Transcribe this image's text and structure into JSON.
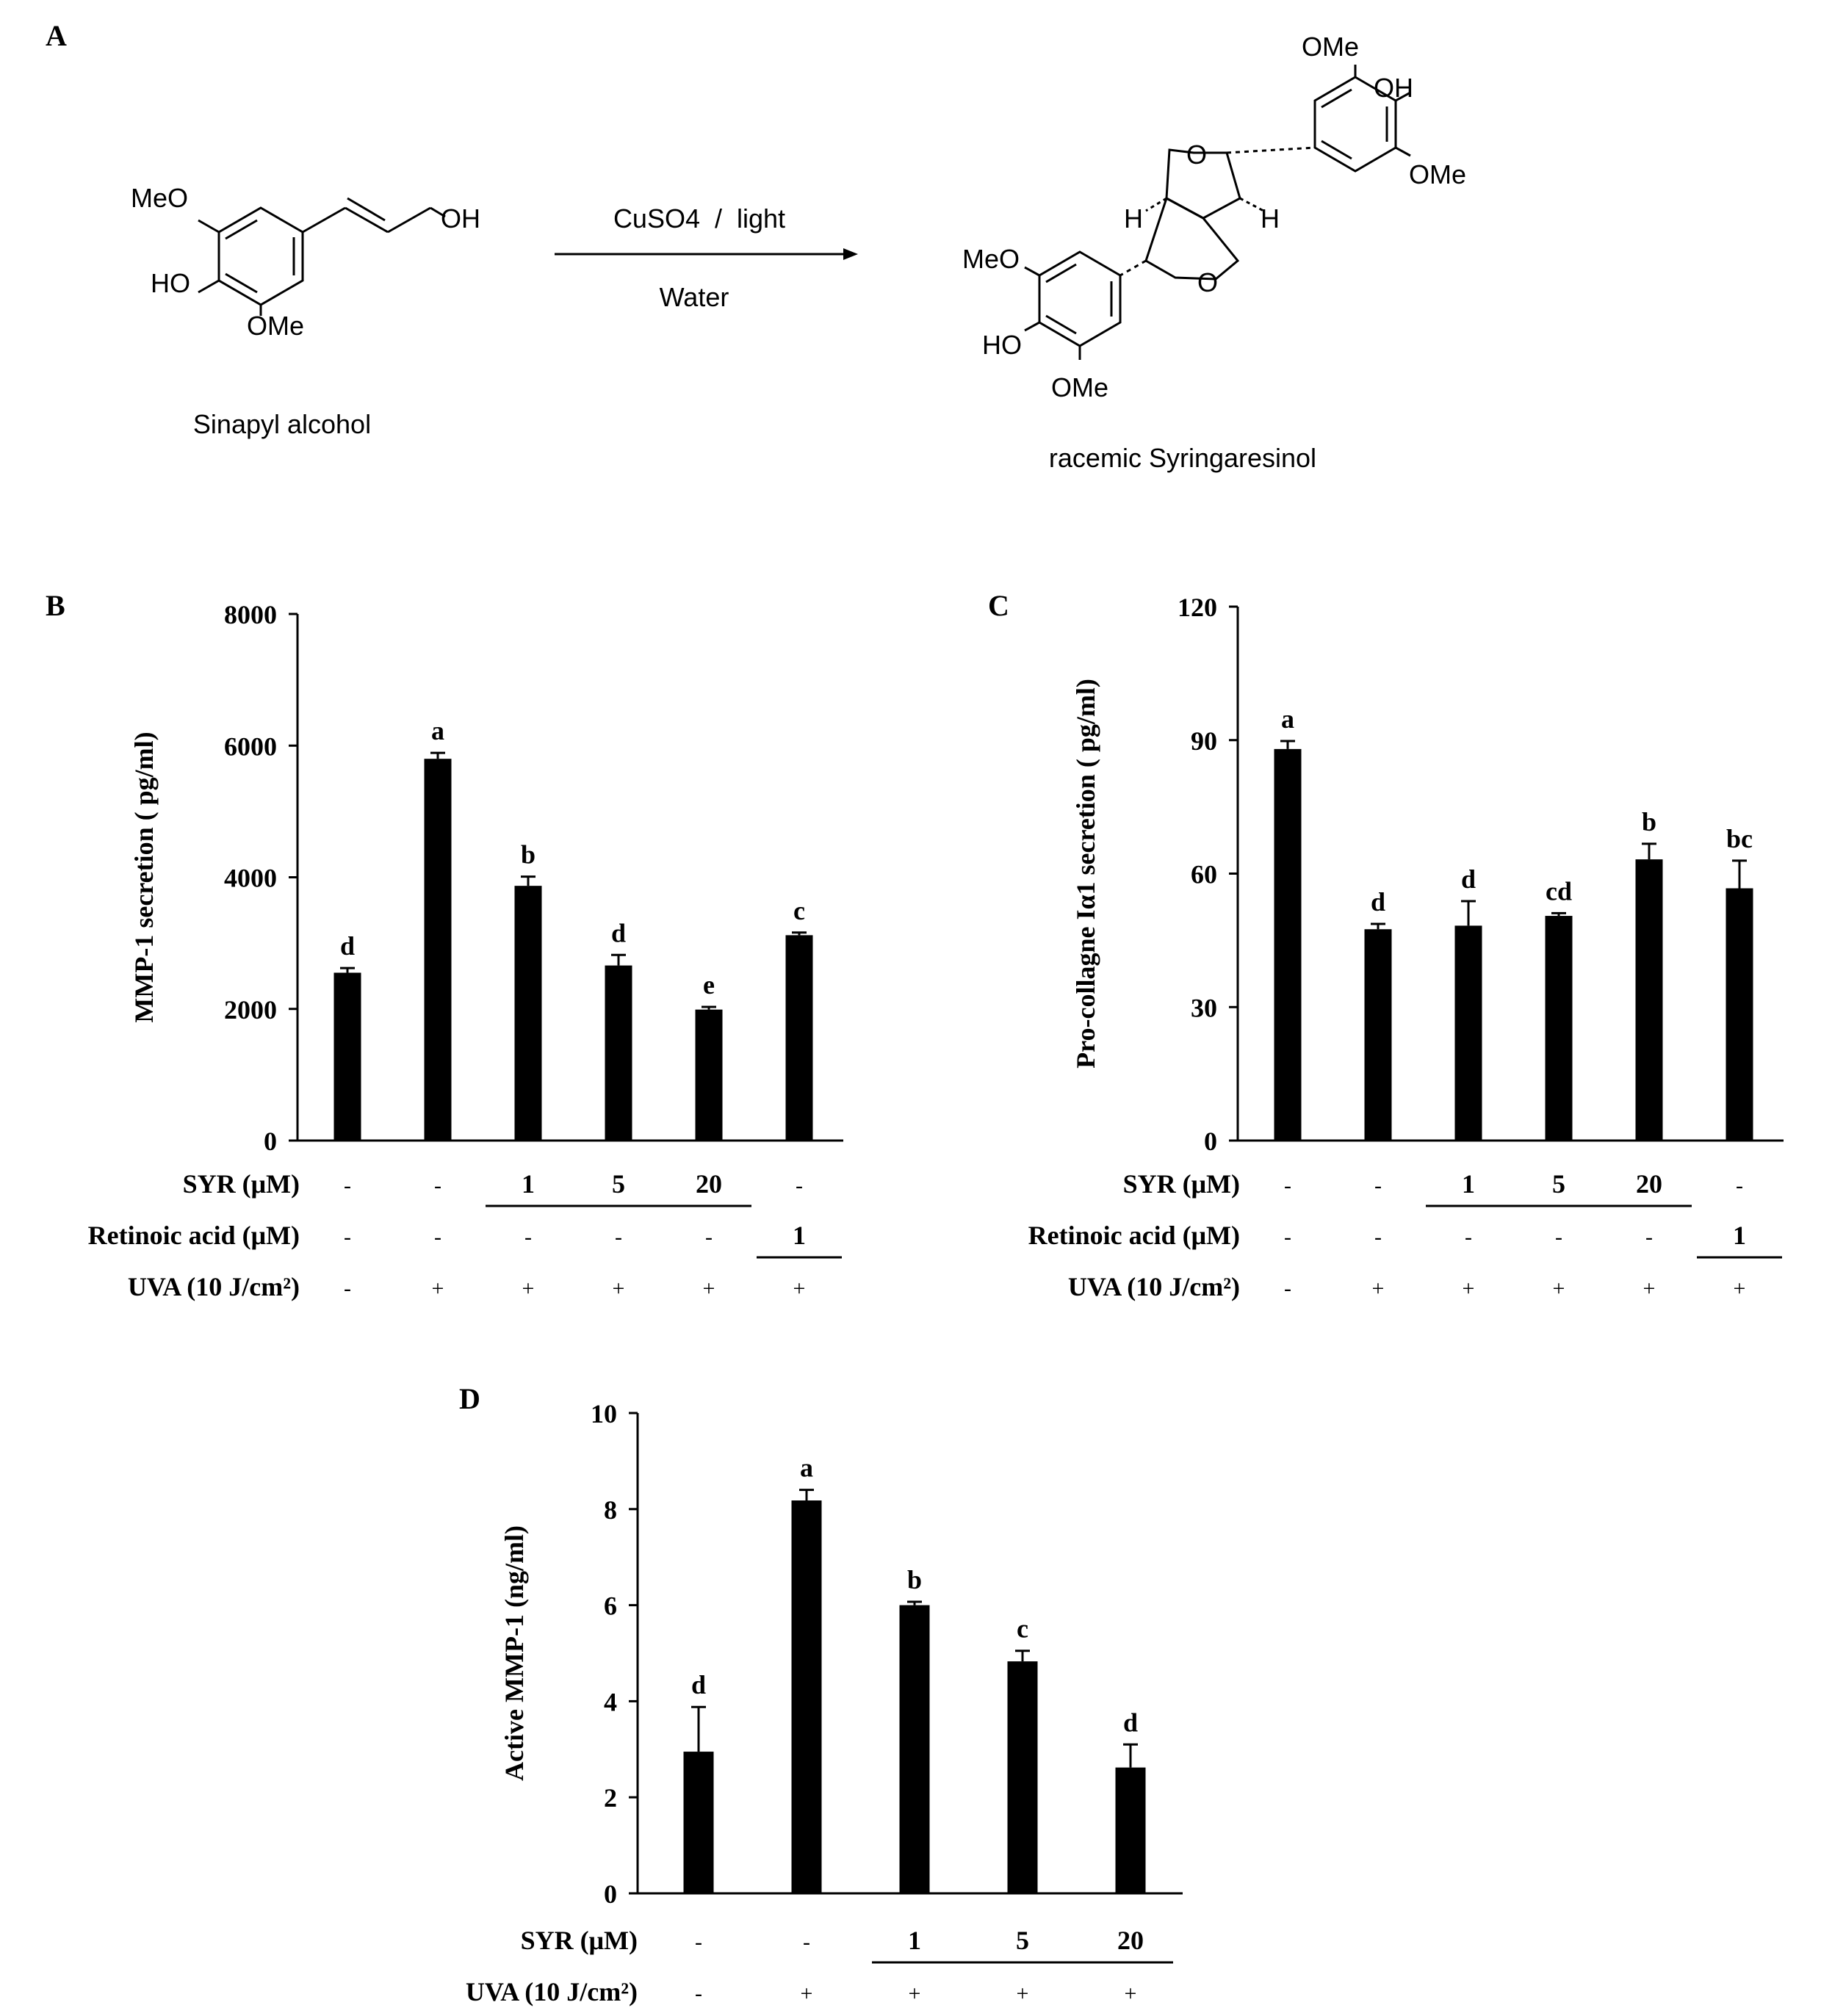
{
  "panels": {
    "A": {
      "letter": "A",
      "reactant": {
        "name": "Sinapyl alcohol",
        "labels": {
          "meo": "MeO",
          "ho": "HO",
          "ome": "OMe",
          "oh": "OH"
        }
      },
      "reaction": {
        "above_arrow": "CuSO4  /  light",
        "below_arrow": "Water"
      },
      "product": {
        "name": "racemic Syringaresinol",
        "labels": {
          "ome_top": "OMe",
          "oh_top": "OH",
          "ome_right": "OMe",
          "h_left": "H",
          "h_right": "H",
          "o_top": "O",
          "o_bottom": "O",
          "meo": "MeO",
          "ho": "HO",
          "ome_bottom": "OMe"
        }
      }
    },
    "B": {
      "letter": "B"
    },
    "C": {
      "letter": "C"
    },
    "D": {
      "letter": "D"
    }
  },
  "colors": {
    "bar": "#000000",
    "background": "#ffffff",
    "axis": "#000000"
  },
  "chart_data": [
    {
      "id": "B",
      "type": "bar",
      "ylabel": "MMP-1 secretion ( pg/ml)",
      "ylim": [
        0,
        8000
      ],
      "yticks": [
        0,
        2000,
        4000,
        6000,
        8000
      ],
      "values": [
        2550,
        5800,
        3870,
        2660,
        1990,
        3120
      ],
      "errors": [
        70,
        90,
        140,
        160,
        40,
        40
      ],
      "letters": [
        "d",
        "a",
        "b",
        "d",
        "e",
        "c"
      ],
      "rows": [
        {
          "label": "SYR (μM)",
          "values": [
            "-",
            "-",
            "1",
            "5",
            "20",
            "-"
          ],
          "bold": [
            false,
            false,
            true,
            true,
            true,
            false
          ],
          "underline": [
            2,
            4
          ]
        },
        {
          "label": "Retinoic acid (μM)",
          "values": [
            "-",
            "-",
            "-",
            "-",
            "-",
            "1"
          ],
          "bold": [
            false,
            false,
            false,
            false,
            false,
            true
          ],
          "underline": [
            5,
            5
          ]
        },
        {
          "label": "UVA (10 J/cm²)",
          "values": [
            "-",
            "+",
            "+",
            "+",
            "+",
            "+"
          ],
          "bold": [
            false,
            false,
            false,
            false,
            false,
            false
          ],
          "underline": null
        }
      ]
    },
    {
      "id": "C",
      "type": "bar",
      "ylabel": "Pro-collagne Iα1 secretion ( pg/ml)",
      "ylim": [
        0,
        120
      ],
      "yticks": [
        0,
        30,
        60,
        90,
        120
      ],
      "values": [
        88,
        47.5,
        48.3,
        50.5,
        63.2,
        56.7
      ],
      "errors": [
        1.8,
        1.2,
        5.5,
        0.6,
        3.5,
        6.2
      ],
      "letters": [
        "a",
        "d",
        "d",
        "cd",
        "b",
        "bc"
      ],
      "rows": [
        {
          "label": "SYR (μM)",
          "values": [
            "-",
            "-",
            "1",
            "5",
            "20",
            "-"
          ],
          "bold": [
            false,
            false,
            true,
            true,
            true,
            false
          ],
          "underline": [
            2,
            4
          ]
        },
        {
          "label": "Retinoic acid (μM)",
          "values": [
            "-",
            "-",
            "-",
            "-",
            "-",
            "1"
          ],
          "bold": [
            false,
            false,
            false,
            false,
            false,
            true
          ],
          "underline": [
            5,
            5
          ]
        },
        {
          "label": "UVA (10 J/cm²)",
          "values": [
            "-",
            "+",
            "+",
            "+",
            "+",
            "+"
          ],
          "bold": [
            false,
            false,
            false,
            false,
            false,
            false
          ],
          "underline": null
        }
      ]
    },
    {
      "id": "D",
      "type": "bar",
      "ylabel": "Active MMP-1  (ng/ml)",
      "ylim": [
        0,
        10
      ],
      "yticks": [
        0,
        2,
        4,
        6,
        8,
        10
      ],
      "values": [
        2.95,
        8.18,
        6.0,
        4.83,
        2.62
      ],
      "errors": [
        0.93,
        0.22,
        0.07,
        0.22,
        0.48
      ],
      "letters": [
        "d",
        "a",
        "b",
        "c",
        "d"
      ],
      "rows": [
        {
          "label": "SYR (μM)",
          "values": [
            "-",
            "-",
            "1",
            "5",
            "20"
          ],
          "bold": [
            false,
            false,
            true,
            true,
            true
          ],
          "underline": [
            2,
            4
          ]
        },
        {
          "label": "UVA (10 J/cm²)",
          "values": [
            "-",
            "+",
            "+",
            "+",
            "+"
          ],
          "bold": [
            false,
            false,
            false,
            false,
            false
          ],
          "underline": null
        }
      ]
    }
  ]
}
